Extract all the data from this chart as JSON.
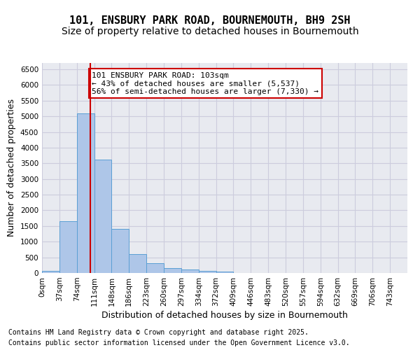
{
  "title_line1": "101, ENSBURY PARK ROAD, BOURNEMOUTH, BH9 2SH",
  "title_line2": "Size of property relative to detached houses in Bournemouth",
  "xlabel": "Distribution of detached houses by size in Bournemouth",
  "ylabel": "Number of detached properties",
  "bin_left_edges": [
    0,
    37,
    74,
    111,
    148,
    185,
    222,
    259,
    296,
    333,
    370,
    407,
    444,
    481,
    518,
    555,
    592,
    629,
    666,
    703,
    740
  ],
  "bin_labels": [
    "0sqm",
    "37sqm",
    "74sqm",
    "111sqm",
    "148sqm",
    "186sqm",
    "223sqm",
    "260sqm",
    "297sqm",
    "334sqm",
    "372sqm",
    "409sqm",
    "446sqm",
    "483sqm",
    "520sqm",
    "557sqm",
    "594sqm",
    "632sqm",
    "669sqm",
    "706sqm",
    "743sqm"
  ],
  "bar_heights": [
    60,
    1650,
    5100,
    3620,
    1400,
    610,
    310,
    150,
    110,
    75,
    50,
    0,
    0,
    0,
    0,
    0,
    0,
    0,
    0,
    0,
    0
  ],
  "bin_width": 37,
  "bar_color": "#aec6e8",
  "bar_edge_color": "#5a9fd4",
  "vline_x": 103,
  "vline_color": "#cc0000",
  "annotation_text": "101 ENSBURY PARK ROAD: 103sqm\n← 43% of detached houses are smaller (5,537)\n56% of semi-detached houses are larger (7,330) →",
  "annotation_box_color": "#cc0000",
  "annotation_bg": "#ffffff",
  "ylim": [
    0,
    6700
  ],
  "yticks": [
    0,
    500,
    1000,
    1500,
    2000,
    2500,
    3000,
    3500,
    4000,
    4500,
    5000,
    5500,
    6000,
    6500
  ],
  "grid_color": "#ccccdd",
  "bg_color": "#e8eaf0",
  "footer_line1": "Contains HM Land Registry data © Crown copyright and database right 2025.",
  "footer_line2": "Contains public sector information licensed under the Open Government Licence v3.0.",
  "title_fontsize": 11,
  "subtitle_fontsize": 10,
  "axis_label_fontsize": 9,
  "tick_fontsize": 7.5,
  "annotation_fontsize": 8,
  "footer_fontsize": 7
}
